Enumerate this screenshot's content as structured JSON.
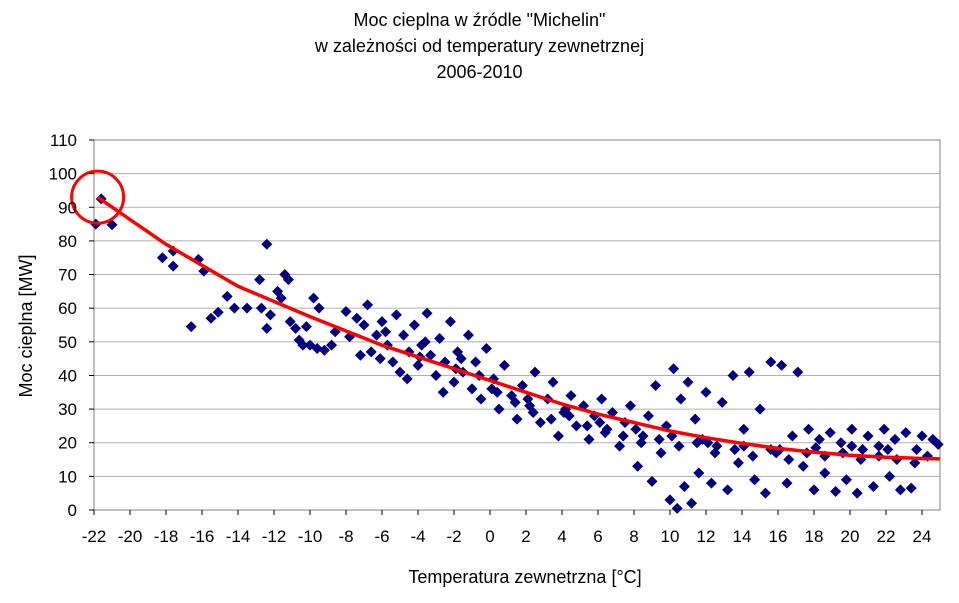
{
  "chart_data": {
    "type": "scatter",
    "title_lines": [
      "Moc cieplna w źródle \"Michelin\"",
      "w zależności od temperatury zewnetrznej",
      "2006-2010"
    ],
    "xlabel": "Temperatura zewnetrzna [°C]",
    "ylabel": "Moc cieplna [MW]",
    "xlim": [
      -22,
      25
    ],
    "ylim": [
      0,
      110
    ],
    "xticks": [
      -22,
      -20,
      -18,
      -16,
      -14,
      -12,
      -10,
      -8,
      -6,
      -4,
      -2,
      0,
      2,
      4,
      6,
      8,
      10,
      12,
      14,
      16,
      18,
      20,
      22,
      24
    ],
    "yticks": [
      0,
      10,
      20,
      30,
      40,
      50,
      60,
      70,
      80,
      90,
      100,
      110
    ],
    "grid": "horizontal",
    "legend": "none",
    "colors": {
      "points": "#000080",
      "trend": "#ff0000",
      "highlight": "#ff0000",
      "grid": "#b0b0b0",
      "plot_border": "#808080"
    },
    "series": [
      {
        "marker": "diamond",
        "points": [
          [
            -21.9,
            85
          ],
          [
            -21.6,
            92.5
          ],
          [
            -21.0,
            84.8
          ],
          [
            -18.2,
            75
          ],
          [
            -17.6,
            77
          ],
          [
            -17.6,
            72.5
          ],
          [
            -16.6,
            54.5
          ],
          [
            -16.2,
            74.5
          ],
          [
            -15.9,
            71
          ],
          [
            -15.5,
            57
          ],
          [
            -15.1,
            58.8
          ],
          [
            -14.6,
            63.5
          ],
          [
            -14.2,
            60
          ],
          [
            -13.5,
            60
          ],
          [
            -12.8,
            68.5
          ],
          [
            -12.7,
            60
          ],
          [
            -12.4,
            79
          ],
          [
            -12.4,
            54
          ],
          [
            -12.2,
            58
          ],
          [
            -11.8,
            65
          ],
          [
            -11.6,
            63
          ],
          [
            -11.4,
            70
          ],
          [
            -11.2,
            68.5
          ],
          [
            -11.1,
            56
          ],
          [
            -10.8,
            54
          ],
          [
            -10.6,
            50.5
          ],
          [
            -10.4,
            49
          ],
          [
            -10.0,
            49
          ],
          [
            -9.6,
            48
          ],
          [
            -9.2,
            47.5
          ],
          [
            -8.8,
            49
          ],
          [
            -10.2,
            54.5
          ],
          [
            -9.8,
            63
          ],
          [
            -9.5,
            60
          ],
          [
            -8.6,
            53
          ],
          [
            -8.0,
            59
          ],
          [
            -7.8,
            51.5
          ],
          [
            -7.4,
            57
          ],
          [
            -7.2,
            46
          ],
          [
            -6.8,
            61
          ],
          [
            -6.6,
            47
          ],
          [
            -6.3,
            52
          ],
          [
            -6.0,
            56
          ],
          [
            -5.7,
            49
          ],
          [
            -5.4,
            44
          ],
          [
            -5.2,
            58
          ],
          [
            -5.0,
            41
          ],
          [
            -4.8,
            52
          ],
          [
            -4.5,
            47
          ],
          [
            -4.2,
            55
          ],
          [
            -4.0,
            43
          ],
          [
            -3.8,
            49
          ],
          [
            -3.5,
            58.5
          ],
          [
            -3.3,
            46
          ],
          [
            -3.0,
            40
          ],
          [
            -2.8,
            51
          ],
          [
            -2.5,
            44
          ],
          [
            -2.2,
            56
          ],
          [
            -2.0,
            38
          ],
          [
            -1.8,
            47
          ],
          [
            -1.5,
            41
          ],
          [
            -1.2,
            52
          ],
          [
            -1.0,
            36
          ],
          [
            -0.8,
            44
          ],
          [
            -0.5,
            33
          ],
          [
            -0.2,
            48
          ],
          [
            0.2,
            39
          ],
          [
            0.5,
            30
          ],
          [
            0.8,
            43
          ],
          [
            1.2,
            34
          ],
          [
            1.5,
            27
          ],
          [
            1.8,
            37
          ],
          [
            2.2,
            31
          ],
          [
            2.5,
            41
          ],
          [
            2.8,
            26
          ],
          [
            3.2,
            33
          ],
          [
            3.5,
            38
          ],
          [
            3.8,
            22
          ],
          [
            4.2,
            30
          ],
          [
            4.5,
            34
          ],
          [
            4.8,
            25
          ],
          [
            5.2,
            31
          ],
          [
            5.5,
            21
          ],
          [
            5.8,
            28
          ],
          [
            6.2,
            33
          ],
          [
            6.5,
            24
          ],
          [
            6.8,
            29
          ],
          [
            7.2,
            19
          ],
          [
            7.5,
            26
          ],
          [
            7.8,
            31
          ],
          [
            8.2,
            13
          ],
          [
            8.5,
            22
          ],
          [
            8.8,
            28
          ],
          [
            9.0,
            8.5
          ],
          [
            9.2,
            37
          ],
          [
            9.5,
            17
          ],
          [
            9.8,
            25
          ],
          [
            10.0,
            3
          ],
          [
            10.2,
            42
          ],
          [
            10.4,
            0.5
          ],
          [
            10.6,
            33
          ],
          [
            10.8,
            7
          ],
          [
            11.0,
            38
          ],
          [
            11.2,
            2
          ],
          [
            11.4,
            27
          ],
          [
            11.6,
            11
          ],
          [
            11.8,
            21
          ],
          [
            12.0,
            35
          ],
          [
            12.3,
            8
          ],
          [
            12.6,
            19
          ],
          [
            12.9,
            32
          ],
          [
            13.2,
            6
          ],
          [
            13.5,
            40
          ],
          [
            13.8,
            14
          ],
          [
            14.1,
            24
          ],
          [
            14.4,
            41
          ],
          [
            14.7,
            9
          ],
          [
            15.0,
            30
          ],
          [
            15.3,
            5
          ],
          [
            15.6,
            44
          ],
          [
            15.9,
            17
          ],
          [
            16.2,
            43
          ],
          [
            16.5,
            8
          ],
          [
            16.8,
            22
          ],
          [
            17.1,
            41
          ],
          [
            17.4,
            13
          ],
          [
            17.7,
            24
          ],
          [
            18.0,
            6
          ],
          [
            18.3,
            21
          ],
          [
            18.6,
            11
          ],
          [
            18.9,
            23
          ],
          [
            19.2,
            5.5
          ],
          [
            19.5,
            20
          ],
          [
            19.8,
            9
          ],
          [
            20.1,
            24
          ],
          [
            20.4,
            5
          ],
          [
            20.7,
            18
          ],
          [
            21.0,
            22
          ],
          [
            21.3,
            7
          ],
          [
            21.6,
            19
          ],
          [
            21.9,
            24
          ],
          [
            22.2,
            10
          ],
          [
            22.5,
            21
          ],
          [
            22.8,
            6
          ],
          [
            23.1,
            23
          ],
          [
            23.4,
            6.5
          ],
          [
            23.7,
            18
          ],
          [
            24.0,
            22
          ],
          [
            24.3,
            16
          ],
          [
            24.6,
            21
          ],
          [
            24.9,
            19.5
          ],
          [
            -7.0,
            55
          ],
          [
            -6.1,
            45
          ],
          [
            -4.6,
            39
          ],
          [
            -3.6,
            50
          ],
          [
            -2.6,
            35
          ],
          [
            -1.6,
            45
          ],
          [
            -0.6,
            40
          ],
          [
            0.4,
            35
          ],
          [
            1.4,
            32
          ],
          [
            2.4,
            29
          ],
          [
            3.4,
            27
          ],
          [
            4.4,
            28
          ],
          [
            5.4,
            25
          ],
          [
            6.4,
            23
          ],
          [
            7.4,
            22
          ],
          [
            8.4,
            20
          ],
          [
            9.4,
            21
          ],
          [
            10.5,
            19
          ],
          [
            11.5,
            20
          ],
          [
            12.5,
            17
          ],
          [
            13.6,
            18
          ],
          [
            14.6,
            16
          ],
          [
            15.6,
            18
          ],
          [
            16.6,
            15
          ],
          [
            17.6,
            17
          ],
          [
            18.6,
            16
          ],
          [
            19.6,
            17
          ],
          [
            20.6,
            15
          ],
          [
            21.6,
            16
          ],
          [
            22.6,
            15
          ],
          [
            23.6,
            14
          ],
          [
            -5.8,
            53
          ],
          [
            -3.9,
            45.5
          ],
          [
            -1.9,
            42
          ],
          [
            0.1,
            36
          ],
          [
            2.1,
            33
          ],
          [
            4.1,
            29
          ],
          [
            6.1,
            26
          ],
          [
            8.1,
            24
          ],
          [
            10.1,
            22
          ],
          [
            12.1,
            20
          ],
          [
            14.1,
            19
          ],
          [
            16.1,
            18
          ],
          [
            18.1,
            18.5
          ],
          [
            20.1,
            19
          ],
          [
            22.1,
            18
          ]
        ]
      }
    ],
    "trendline": {
      "type": "polynomial",
      "points": [
        [
          -21.8,
          93
        ],
        [
          -18,
          79
        ],
        [
          -14,
          66.5
        ],
        [
          -10,
          57.5
        ],
        [
          -6,
          49
        ],
        [
          -2,
          42
        ],
        [
          0,
          38.5
        ],
        [
          2,
          35
        ],
        [
          4,
          31.5
        ],
        [
          6,
          28.5
        ],
        [
          8,
          26
        ],
        [
          10,
          23.5
        ],
        [
          12,
          21.5
        ],
        [
          14,
          19.8
        ],
        [
          16,
          18.3
        ],
        [
          18,
          17.2
        ],
        [
          20,
          16.3
        ],
        [
          22,
          15.7
        ],
        [
          24,
          15.3
        ],
        [
          25,
          15.2
        ]
      ]
    },
    "annotation": {
      "type": "circle",
      "x": -21.8,
      "y": 93
    }
  }
}
